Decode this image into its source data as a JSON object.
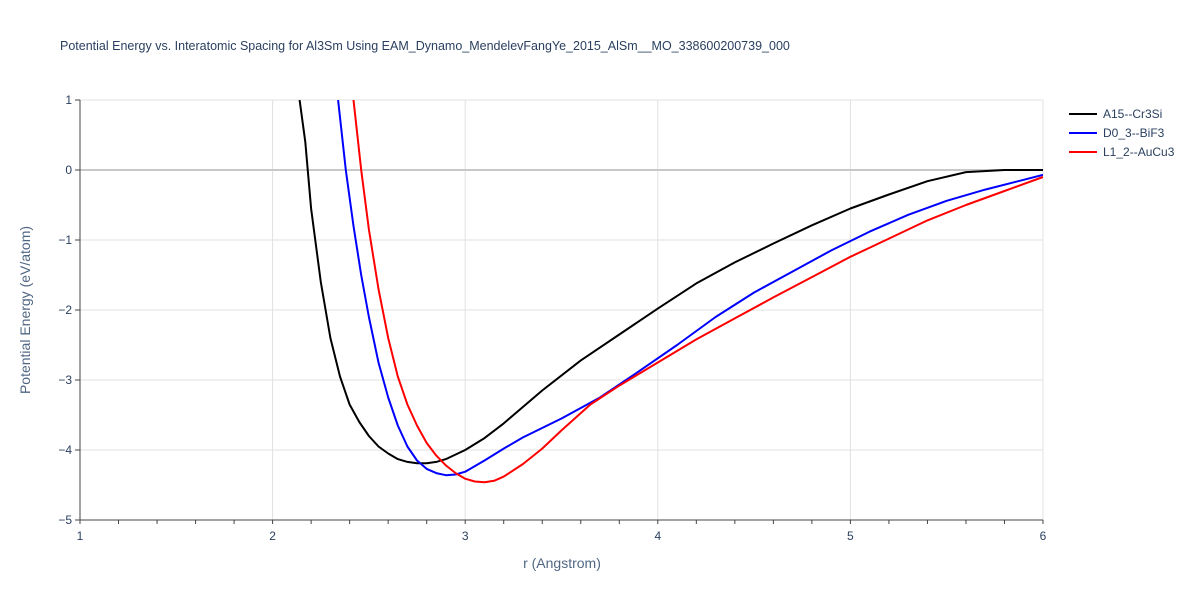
{
  "chart_data": {
    "type": "line",
    "title": "Potential Energy vs. Interatomic Spacing for Al3Sm Using EAM_Dynamo_MendelevFangYe_2015_AlSm__MO_338600200739_000",
    "xlabel": "r (Angstrom)",
    "ylabel": "Potential Energy (eV/atom)",
    "xlim": [
      1,
      6
    ],
    "ylim": [
      -5,
      1
    ],
    "x_ticks": [
      1,
      2,
      3,
      4,
      5,
      6
    ],
    "y_ticks": [
      1,
      0,
      -1,
      -2,
      -3,
      -4,
      -5
    ],
    "x_tick_labels": [
      "1",
      "2",
      "3",
      "4",
      "5",
      "6"
    ],
    "y_tick_labels": [
      "1",
      "0",
      "−1",
      "−2",
      "−3",
      "−4",
      "−5"
    ],
    "grid": true,
    "legend_position": "top-right",
    "series": [
      {
        "name": "A15--Cr3Si",
        "color": "#000000",
        "points": [
          [
            2.14,
            1.0
          ],
          [
            2.17,
            0.4
          ],
          [
            2.2,
            -0.55
          ],
          [
            2.25,
            -1.6
          ],
          [
            2.3,
            -2.4
          ],
          [
            2.35,
            -2.95
          ],
          [
            2.4,
            -3.35
          ],
          [
            2.45,
            -3.6
          ],
          [
            2.5,
            -3.8
          ],
          [
            2.55,
            -3.95
          ],
          [
            2.6,
            -4.05
          ],
          [
            2.65,
            -4.13
          ],
          [
            2.7,
            -4.17
          ],
          [
            2.75,
            -4.19
          ],
          [
            2.8,
            -4.19
          ],
          [
            2.85,
            -4.17
          ],
          [
            2.9,
            -4.13
          ],
          [
            3.0,
            -4.0
          ],
          [
            3.1,
            -3.83
          ],
          [
            3.2,
            -3.62
          ],
          [
            3.4,
            -3.15
          ],
          [
            3.6,
            -2.72
          ],
          [
            3.8,
            -2.35
          ],
          [
            4.0,
            -1.98
          ],
          [
            4.2,
            -1.62
          ],
          [
            4.4,
            -1.32
          ],
          [
            4.6,
            -1.05
          ],
          [
            4.8,
            -0.79
          ],
          [
            5.0,
            -0.55
          ],
          [
            5.2,
            -0.35
          ],
          [
            5.4,
            -0.16
          ],
          [
            5.6,
            -0.03
          ],
          [
            5.8,
            0.0
          ],
          [
            6.0,
            0.0
          ]
        ]
      },
      {
        "name": "D0_3--BiF3",
        "color": "#0000ff",
        "points": [
          [
            2.34,
            1.0
          ],
          [
            2.38,
            0.0
          ],
          [
            2.42,
            -0.8
          ],
          [
            2.46,
            -1.5
          ],
          [
            2.5,
            -2.1
          ],
          [
            2.55,
            -2.75
          ],
          [
            2.6,
            -3.25
          ],
          [
            2.65,
            -3.65
          ],
          [
            2.7,
            -3.95
          ],
          [
            2.75,
            -4.15
          ],
          [
            2.8,
            -4.27
          ],
          [
            2.85,
            -4.33
          ],
          [
            2.9,
            -4.36
          ],
          [
            2.95,
            -4.35
          ],
          [
            3.0,
            -4.31
          ],
          [
            3.1,
            -4.15
          ],
          [
            3.2,
            -3.98
          ],
          [
            3.3,
            -3.82
          ],
          [
            3.5,
            -3.55
          ],
          [
            3.7,
            -3.25
          ],
          [
            3.9,
            -2.88
          ],
          [
            4.1,
            -2.5
          ],
          [
            4.3,
            -2.1
          ],
          [
            4.5,
            -1.75
          ],
          [
            4.7,
            -1.45
          ],
          [
            4.9,
            -1.15
          ],
          [
            5.1,
            -0.88
          ],
          [
            5.3,
            -0.64
          ],
          [
            5.5,
            -0.44
          ],
          [
            5.7,
            -0.28
          ],
          [
            5.9,
            -0.14
          ],
          [
            6.0,
            -0.07
          ]
        ]
      },
      {
        "name": "L1_2--AuCu3",
        "color": "#ff0000",
        "points": [
          [
            2.42,
            1.0
          ],
          [
            2.46,
            0.0
          ],
          [
            2.5,
            -0.85
          ],
          [
            2.55,
            -1.7
          ],
          [
            2.6,
            -2.4
          ],
          [
            2.65,
            -2.95
          ],
          [
            2.7,
            -3.35
          ],
          [
            2.75,
            -3.65
          ],
          [
            2.8,
            -3.9
          ],
          [
            2.85,
            -4.08
          ],
          [
            2.9,
            -4.22
          ],
          [
            2.95,
            -4.33
          ],
          [
            3.0,
            -4.41
          ],
          [
            3.05,
            -4.45
          ],
          [
            3.1,
            -4.46
          ],
          [
            3.15,
            -4.44
          ],
          [
            3.2,
            -4.38
          ],
          [
            3.3,
            -4.2
          ],
          [
            3.4,
            -3.98
          ],
          [
            3.5,
            -3.72
          ],
          [
            3.65,
            -3.35
          ],
          [
            3.8,
            -3.08
          ],
          [
            4.0,
            -2.75
          ],
          [
            4.2,
            -2.42
          ],
          [
            4.4,
            -2.12
          ],
          [
            4.6,
            -1.82
          ],
          [
            4.8,
            -1.53
          ],
          [
            5.0,
            -1.24
          ],
          [
            5.2,
            -0.98
          ],
          [
            5.4,
            -0.72
          ],
          [
            5.6,
            -0.5
          ],
          [
            5.8,
            -0.3
          ],
          [
            6.0,
            -0.1
          ]
        ]
      }
    ]
  }
}
